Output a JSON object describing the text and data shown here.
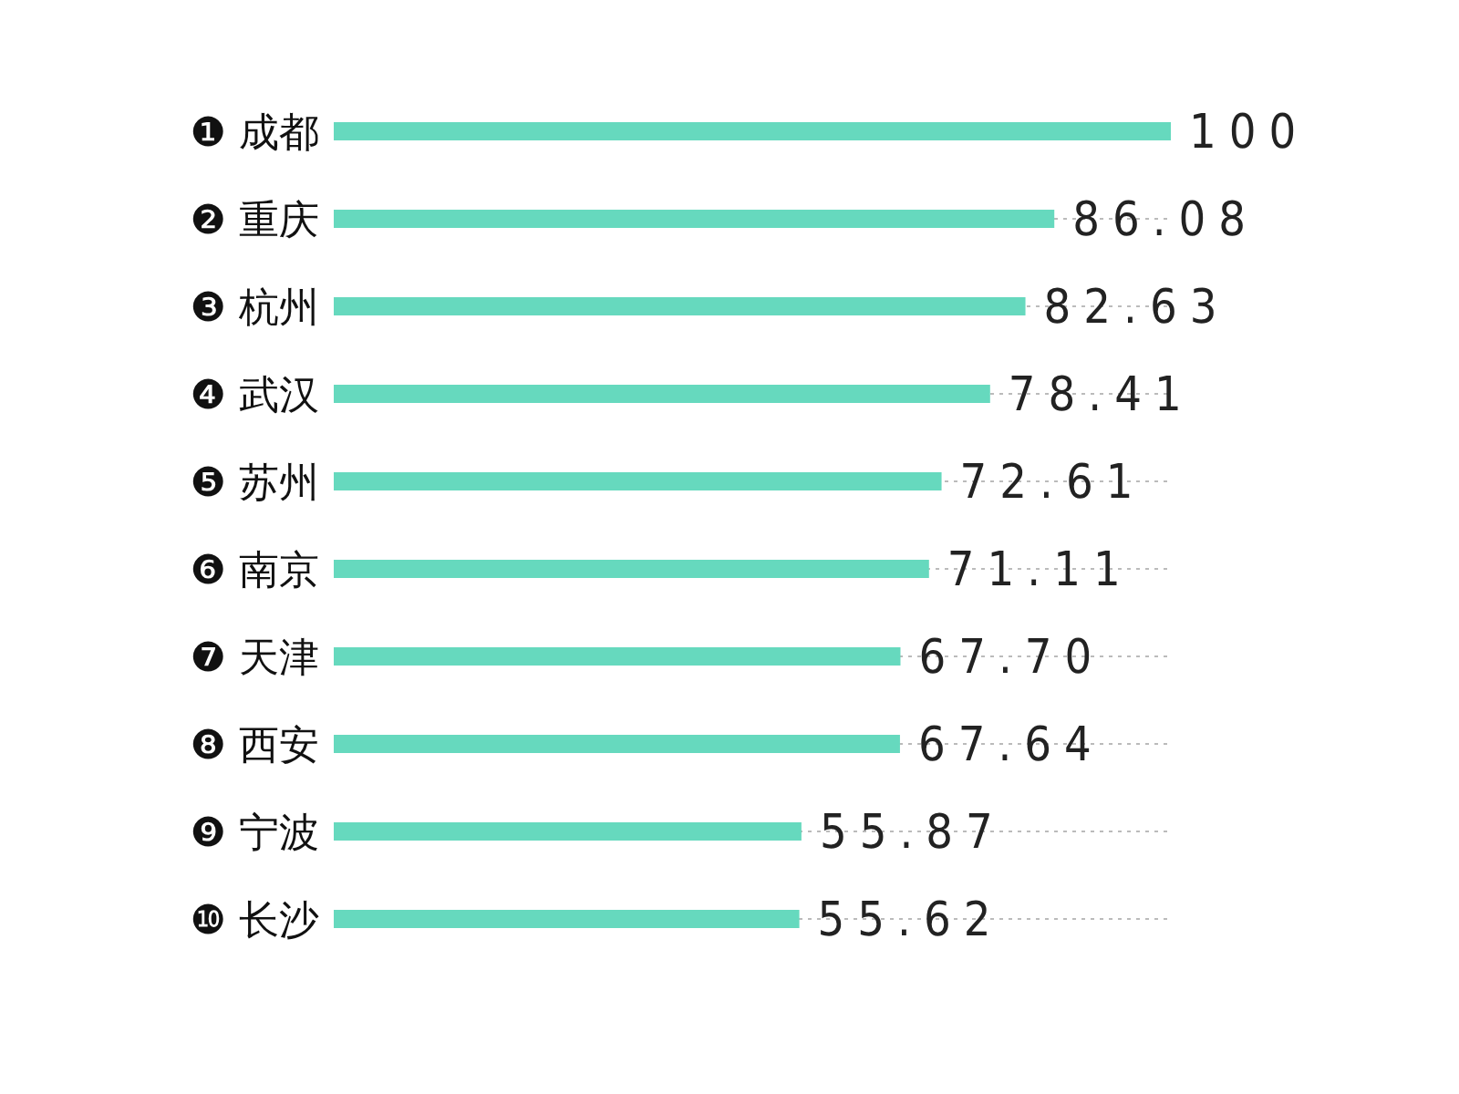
{
  "chart_data": {
    "type": "bar",
    "orientation": "horizontal",
    "categories": [
      "❶ 成都",
      "❷ 重庆",
      "❸ 杭州",
      "❹ 武汉",
      "❺ 苏州",
      "❻ 南京",
      "❼ 天津",
      "❽ 西安",
      "❾ 宁波",
      "❿ 长沙"
    ],
    "values": [
      100,
      86.08,
      82.63,
      78.41,
      72.61,
      71.11,
      67.7,
      67.64,
      55.87,
      55.62
    ],
    "value_labels": [
      "100",
      "86.08",
      "82.63",
      "78.41",
      "72.61",
      "71.11",
      "67.70",
      "67.64",
      "55.87",
      "55.62"
    ],
    "color": "#66d9be"
  }
}
